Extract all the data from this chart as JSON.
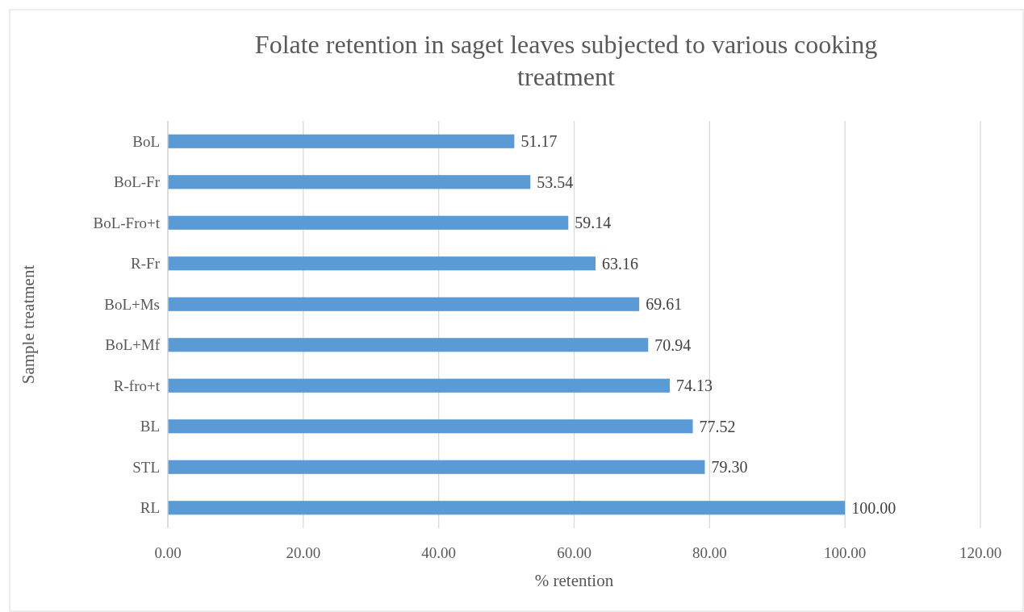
{
  "chart_data": {
    "type": "bar",
    "orientation": "horizontal",
    "title": "Folate retention in saget leaves subjected to various cooking treatment",
    "xlabel": "% retention",
    "ylabel": "Sample treatment",
    "categories": [
      "BoL",
      "BoL-Fr",
      "BoL-Fro+t",
      "R-Fr",
      "BoL+Ms",
      "BoL+Mf",
      "R-fro+t",
      "BL",
      "STL",
      "RL"
    ],
    "values": [
      51.17,
      53.54,
      59.14,
      63.16,
      69.61,
      70.94,
      74.13,
      77.52,
      79.3,
      100.0
    ],
    "value_labels": [
      "51.17",
      "53.54",
      "59.14",
      "63.16",
      "69.61",
      "70.94",
      "74.13",
      "77.52",
      "79.30",
      "100.00"
    ],
    "color": "#5b9bd5",
    "xlim": [
      0,
      120
    ],
    "xticks": [
      {
        "value": 0,
        "label": "0.00"
      },
      {
        "value": 20,
        "label": "20.00"
      },
      {
        "value": 40,
        "label": "40.00"
      },
      {
        "value": 60,
        "label": "60.00"
      },
      {
        "value": 80,
        "label": "80.00"
      },
      {
        "value": 100,
        "label": "100.00"
      },
      {
        "value": 120,
        "label": "120.00"
      }
    ],
    "grid": "x"
  }
}
